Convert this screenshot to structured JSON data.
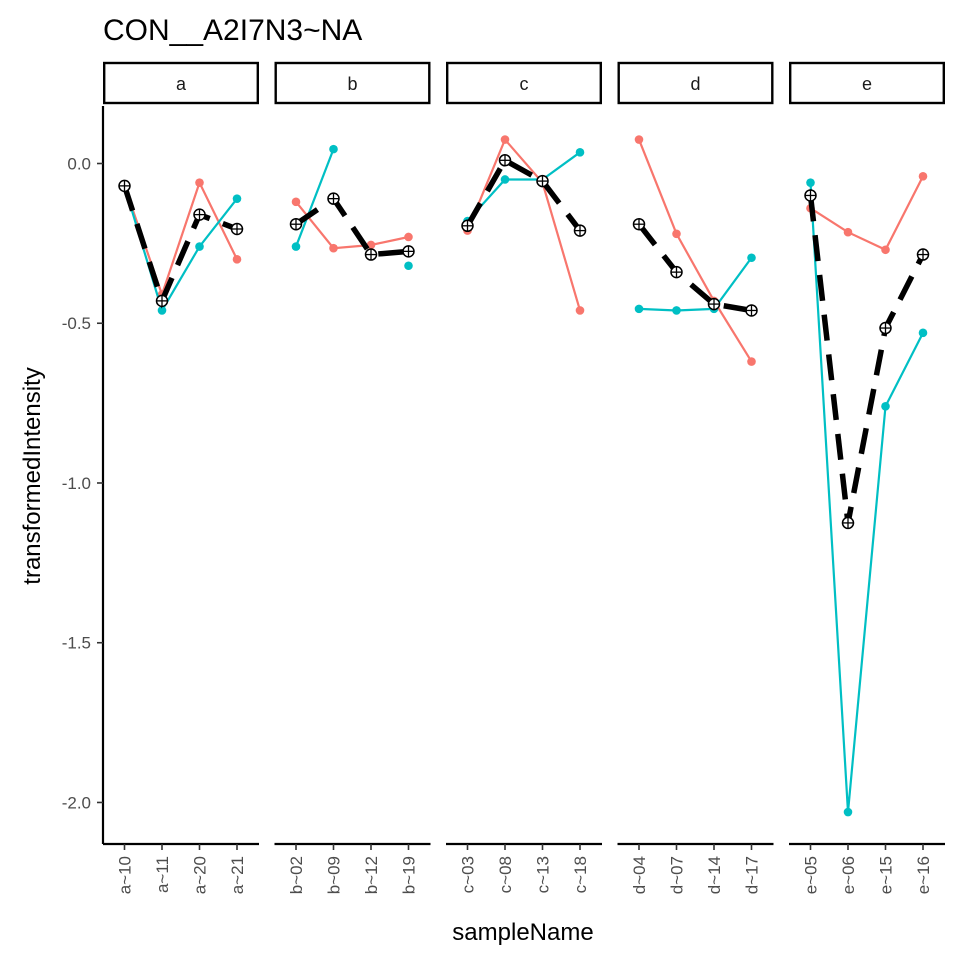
{
  "chart_data": {
    "type": "line",
    "title": "CON__A2I7N3~NA",
    "xlabel": "sampleName",
    "ylabel": "transformedIntensity",
    "ylim": [
      -2.13,
      0.18
    ],
    "yticks": [
      0.0,
      -0.5,
      -1.0,
      -1.5,
      -2.0
    ],
    "ytick_labels": [
      "0.0",
      "-0.5",
      "-1.0",
      "-1.5",
      "-2.0"
    ],
    "grid": false,
    "legend": "none",
    "facets": [
      {
        "label": "a",
        "categories": [
          "a~10",
          "a~11",
          "a~20",
          "a~21"
        ],
        "red": [
          -0.07,
          -0.41,
          -0.06,
          -0.3
        ],
        "teal": [
          -0.07,
          -0.46,
          -0.26,
          -0.11
        ],
        "mean": [
          -0.07,
          -0.43,
          -0.16,
          -0.205
        ]
      },
      {
        "label": "b",
        "categories": [
          "b~02",
          "b~09",
          "b~12",
          "b~19"
        ],
        "red": [
          -0.12,
          -0.265,
          -0.255,
          -0.23
        ],
        "teal": [
          -0.26,
          0.045,
          null,
          -0.32
        ],
        "mean": [
          -0.19,
          -0.11,
          -0.285,
          -0.275
        ]
      },
      {
        "label": "c",
        "categories": [
          "c~03",
          "c~08",
          "c~13",
          "c~18"
        ],
        "red": [
          -0.21,
          0.075,
          -0.06,
          -0.46
        ],
        "teal": [
          -0.18,
          -0.05,
          -0.05,
          0.035
        ],
        "mean": [
          -0.195,
          0.01,
          -0.055,
          -0.21
        ]
      },
      {
        "label": "d",
        "categories": [
          "d~04",
          "d~07",
          "d~14",
          "d~17"
        ],
        "red": [
          0.075,
          -0.22,
          -0.43,
          -0.62
        ],
        "teal": [
          -0.455,
          -0.46,
          -0.455,
          -0.295
        ],
        "mean": [
          -0.19,
          -0.34,
          -0.44,
          -0.46
        ]
      },
      {
        "label": "e",
        "categories": [
          "e~05",
          "e~06",
          "e~15",
          "e~16"
        ],
        "red": [
          -0.14,
          -0.215,
          -0.27,
          -0.04
        ],
        "teal": [
          -0.06,
          -2.03,
          -0.76,
          -0.53
        ],
        "mean": [
          -0.1,
          -1.125,
          -0.515,
          -0.285
        ]
      }
    ],
    "colors": {
      "red": "#F8766D",
      "teal": "#00BFC4",
      "mean": "#000000"
    }
  }
}
